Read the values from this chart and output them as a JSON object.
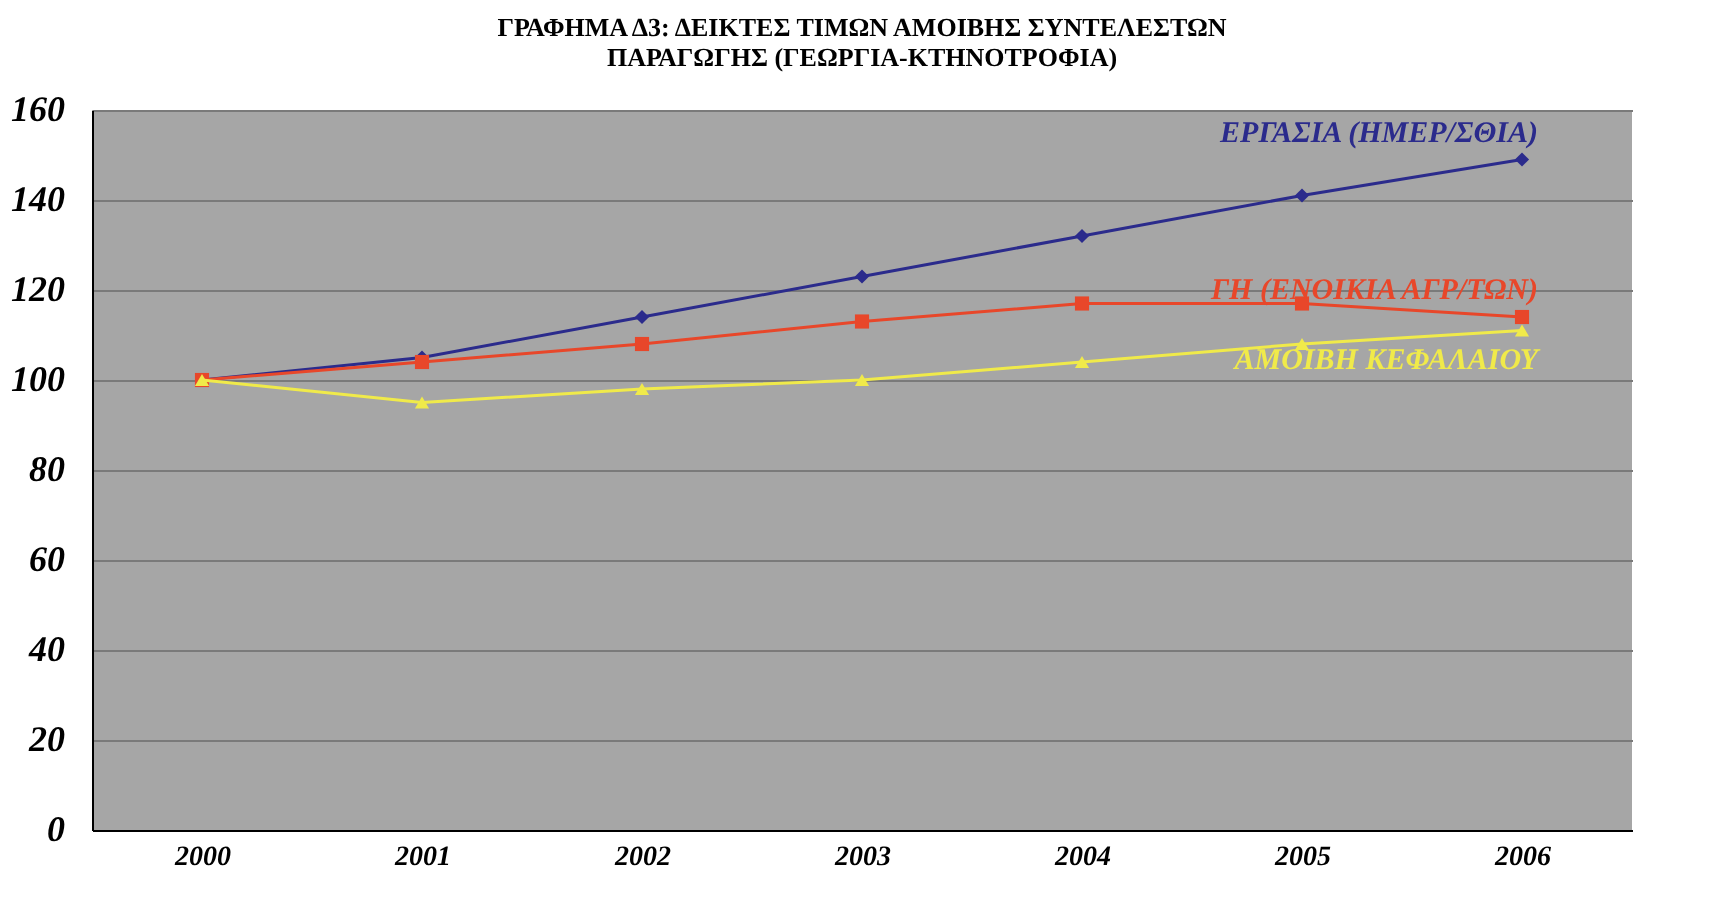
{
  "chart_data": {
    "type": "line",
    "title": [
      "ΓΡΑΦΗΜΑ Δ3: ΔΕΙΚΤΕΣ ΤΙΜΩΝ ΑΜΟΙΒΗΣ ΣΥΝΤΕΛΕΣΤΩΝ",
      "ΠΑΡΑΓΩΓΗΣ (ΓΕΩΡΓΙΑ-ΚΤΗΝΟΤΡΟΦΙΑ)"
    ],
    "categories": [
      "2000",
      "2001",
      "2002",
      "2003",
      "2004",
      "2005",
      "2006"
    ],
    "series": [
      {
        "name": "ΕΡΓΑΣΙΑ (ΗΜΕΡ/ΣΘΙΑ)",
        "color": "#2b2b8c",
        "marker": "diamond",
        "values": [
          100,
          105,
          114,
          123,
          132,
          141,
          149
        ]
      },
      {
        "name": "ΓΗ (ΕΝΟΙΚΙΑ ΑΓΡ/ΤΩΝ)",
        "color": "#e8472a",
        "marker": "square",
        "values": [
          100,
          104,
          108,
          113,
          117,
          117,
          114
        ]
      },
      {
        "name": "ΑΜΟΙΒΗ ΚΕΦΑΛΑΙΟΥ",
        "color": "#f0ea4a",
        "marker": "triangle",
        "values": [
          100,
          95,
          98,
          100,
          104,
          108,
          111
        ]
      }
    ],
    "ylim": [
      0,
      160
    ],
    "yticks": [
      0,
      20,
      40,
      60,
      80,
      100,
      120,
      140,
      160
    ],
    "grid": "y",
    "legend": false
  }
}
